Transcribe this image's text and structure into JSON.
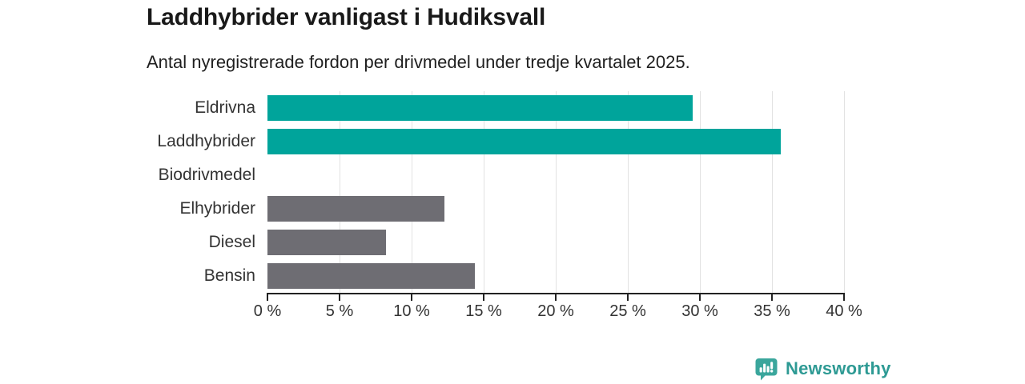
{
  "header": {
    "title": "Laddhybrider vanligast i Hudiksvall",
    "subtitle": "Antal nyregistrerade fordon per drivmedel under tredje kvartalet 2025."
  },
  "chart_data": {
    "type": "bar",
    "orientation": "horizontal",
    "title": "Laddhybrider vanligast i Hudiksvall",
    "subtitle": "Antal nyregistrerade fordon per drivmedel under tredje kvartalet 2025.",
    "categories": [
      "Eldrivna",
      "Laddhybrider",
      "Biodrivmedel",
      "Elhybrider",
      "Diesel",
      "Bensin"
    ],
    "values": [
      29.5,
      35.6,
      0,
      12.3,
      8.2,
      14.4
    ],
    "unit": "%",
    "xlim": [
      0,
      40
    ],
    "x_ticks": [
      {
        "value": 0,
        "label": "0 %"
      },
      {
        "value": 5,
        "label": "5 %"
      },
      {
        "value": 10,
        "label": "10 %"
      },
      {
        "value": 15,
        "label": "15 %"
      },
      {
        "value": 20,
        "label": "20 %"
      },
      {
        "value": 25,
        "label": "25 %"
      },
      {
        "value": 30,
        "label": "30 %"
      },
      {
        "value": 35,
        "label": "35 %"
      },
      {
        "value": 40,
        "label": "40 %"
      }
    ],
    "bar_colors": [
      "#00a49b",
      "#00a49b",
      "#6e6d73",
      "#6e6d73",
      "#6e6d73",
      "#6e6d73"
    ],
    "grid": true,
    "legend": false
  },
  "footer": {
    "brand": "Newsworthy"
  },
  "colors": {
    "highlight_teal": "#00a49b",
    "neutral_gray": "#6e6d73",
    "brand_teal": "#2e9a94",
    "brand_badge_teal": "#3aa69c",
    "gridline": "#e2e2e2",
    "axis": "#222222"
  }
}
